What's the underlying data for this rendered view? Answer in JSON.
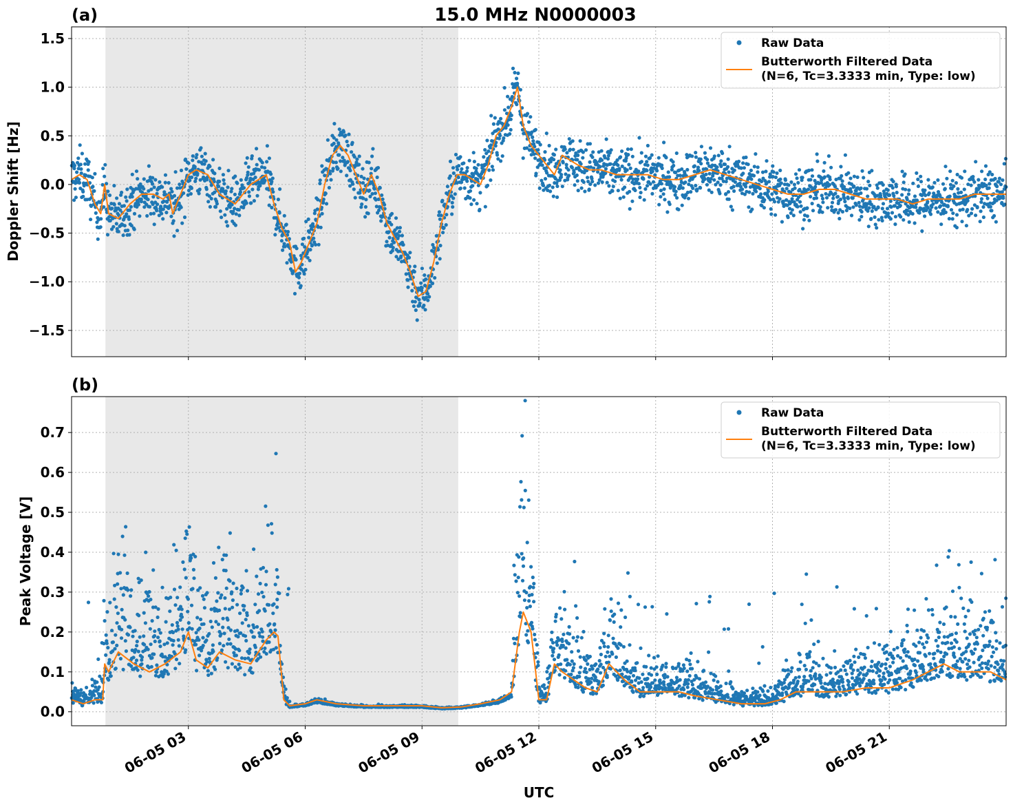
{
  "figure_title": "15.0 MHz N0000003",
  "colors": {
    "raw": "#1f77b4",
    "filtered": "#ff7f0e",
    "shade": "#e8e8e8",
    "grid": "#b0b0b0"
  },
  "legend": {
    "raw_label": "Raw Data",
    "filtered_label_line1": "Butterworth Filtered Data",
    "filtered_label_line2": "(N=6, Tc=3.3333 min, Type: low)"
  },
  "xaxis": {
    "label": "UTC",
    "range_hours": [
      0,
      24
    ],
    "tick_hours": [
      3,
      6,
      9,
      12,
      15,
      18,
      21
    ],
    "tick_labels": [
      "06-05 03",
      "06-05 06",
      "06-05 09",
      "06-05 12",
      "06-05 15",
      "06-05 18",
      "06-05 21"
    ],
    "shaded_span_hours": [
      0.87,
      9.93
    ]
  },
  "chart_data": [
    {
      "type": "scatter+line",
      "panel": "(a)",
      "ylabel": "Doppler Shift [Hz]",
      "ylim": [
        -1.77,
        1.62
      ],
      "yticks": [
        -1.5,
        -1.0,
        -0.5,
        0.0,
        0.5,
        1.0,
        1.5
      ],
      "ytick_labels": [
        "−1.5",
        "−1.0",
        "−0.5",
        "0.0",
        "0.5",
        "1.0",
        "1.5"
      ],
      "grid": true,
      "legend_position": "top-right",
      "series": [
        {
          "name": "Raw Data",
          "style": "dots",
          "desc": "dense scatter around filtered curve"
        },
        {
          "name": "Butterworth Filtered Data",
          "style": "line",
          "x": [
            0,
            0.2,
            0.4,
            0.6,
            0.75,
            0.85,
            0.95,
            1.2,
            1.5,
            1.8,
            2.1,
            2.35,
            2.5,
            2.6,
            2.8,
            3.0,
            3.2,
            3.5,
            3.8,
            4.2,
            4.6,
            5.0,
            5.2,
            5.4,
            5.6,
            5.75,
            5.9,
            6.1,
            6.3,
            6.5,
            6.7,
            6.9,
            7.1,
            7.3,
            7.5,
            7.7,
            7.9,
            8.1,
            8.3,
            8.5,
            8.7,
            8.9,
            9.1,
            9.3,
            9.5,
            9.7,
            9.9,
            10.1,
            10.3,
            10.5,
            10.7,
            10.9,
            11.1,
            11.3,
            11.45,
            11.6,
            11.8,
            12.0,
            12.2,
            12.4,
            12.6,
            12.8,
            13.0,
            13.3,
            13.6,
            14.0,
            14.4,
            14.8,
            15.2,
            15.6,
            16.0,
            16.4,
            16.8,
            17.2,
            17.6,
            18.0,
            18.4,
            18.8,
            19.2,
            19.6,
            20.0,
            20.4,
            20.8,
            21.2,
            21.6,
            22.0,
            22.4,
            22.8,
            23.2,
            23.6,
            24.0
          ],
          "y": [
            0.05,
            0.1,
            0.05,
            -0.2,
            -0.3,
            0.0,
            -0.3,
            -0.35,
            -0.2,
            -0.1,
            -0.1,
            -0.15,
            -0.1,
            -0.3,
            -0.1,
            0.1,
            0.15,
            0.1,
            -0.1,
            -0.2,
            0.0,
            0.1,
            -0.2,
            -0.45,
            -0.6,
            -0.9,
            -0.8,
            -0.6,
            -0.4,
            0.0,
            0.3,
            0.4,
            0.3,
            0.1,
            -0.1,
            0.1,
            -0.1,
            -0.4,
            -0.55,
            -0.7,
            -0.9,
            -1.15,
            -1.1,
            -0.8,
            -0.4,
            -0.1,
            0.1,
            0.1,
            0.05,
            0.0,
            0.2,
            0.5,
            0.6,
            0.8,
            1.0,
            0.6,
            0.4,
            0.3,
            0.2,
            0.1,
            0.3,
            0.25,
            0.2,
            0.15,
            0.15,
            0.1,
            0.1,
            0.1,
            0.05,
            0.05,
            0.1,
            0.15,
            0.1,
            0.05,
            0.0,
            -0.05,
            -0.1,
            -0.1,
            -0.05,
            -0.05,
            -0.1,
            -0.15,
            -0.15,
            -0.15,
            -0.2,
            -0.15,
            -0.15,
            -0.15,
            -0.1,
            -0.1,
            -0.1
          ],
          "noise_hz": 0.3
        }
      ]
    },
    {
      "type": "scatter+line",
      "panel": "(b)",
      "ylabel": "Peak Voltage [V]",
      "ylim": [
        -0.035,
        0.79
      ],
      "yticks": [
        0.0,
        0.1,
        0.2,
        0.3,
        0.4,
        0.5,
        0.6,
        0.7
      ],
      "ytick_labels": [
        "0.0",
        "0.1",
        "0.2",
        "0.3",
        "0.4",
        "0.5",
        "0.6",
        "0.7"
      ],
      "grid": true,
      "legend_position": "top-right",
      "series": [
        {
          "name": "Raw Data",
          "style": "dots",
          "desc": "spiky scatter above filtered curve"
        },
        {
          "name": "Butterworth Filtered Data",
          "style": "line",
          "x": [
            0,
            0.3,
            0.6,
            0.8,
            0.85,
            0.95,
            1.2,
            1.6,
            2.0,
            2.4,
            2.8,
            3.0,
            3.2,
            3.5,
            3.8,
            4.2,
            4.6,
            5.0,
            5.2,
            5.3,
            5.45,
            5.6,
            6.0,
            6.3,
            6.8,
            7.5,
            8.5,
            9.0,
            9.5,
            10.0,
            10.5,
            11.0,
            11.3,
            11.5,
            11.6,
            11.8,
            12.0,
            12.2,
            12.4,
            12.6,
            12.9,
            13.2,
            13.5,
            13.8,
            14.2,
            14.6,
            15.0,
            15.6,
            16.0,
            16.6,
            17.2,
            17.8,
            18.2,
            18.6,
            19.2,
            19.8,
            20.4,
            21.0,
            21.6,
            22.0,
            22.4,
            22.8,
            23.2,
            23.6,
            24.0
          ],
          "y": [
            0.03,
            0.02,
            0.03,
            0.03,
            0.12,
            0.1,
            0.15,
            0.12,
            0.1,
            0.12,
            0.15,
            0.2,
            0.13,
            0.11,
            0.15,
            0.13,
            0.12,
            0.18,
            0.2,
            0.19,
            0.03,
            0.015,
            0.02,
            0.03,
            0.02,
            0.015,
            0.015,
            0.015,
            0.01,
            0.012,
            0.02,
            0.03,
            0.05,
            0.2,
            0.25,
            0.2,
            0.03,
            0.03,
            0.12,
            0.1,
            0.08,
            0.06,
            0.05,
            0.12,
            0.08,
            0.05,
            0.05,
            0.05,
            0.04,
            0.03,
            0.02,
            0.02,
            0.03,
            0.05,
            0.05,
            0.05,
            0.06,
            0.06,
            0.08,
            0.1,
            0.12,
            0.1,
            0.1,
            0.1,
            0.08
          ],
          "noise_v": 0.1
        }
      ]
    }
  ]
}
